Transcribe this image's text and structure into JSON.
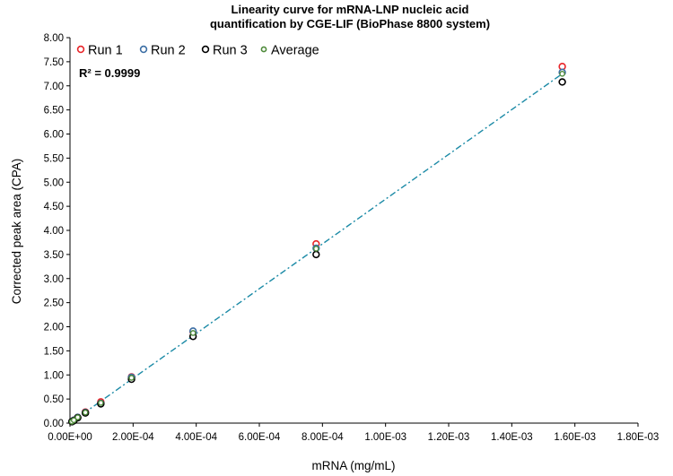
{
  "chart_data": {
    "type": "scatter",
    "title_lines": [
      "Linearity curve for mRNA-LNP nucleic acid",
      "quantification by CGE-LIF (BioPhase 8800 system)"
    ],
    "xlabel": "mRNA (mg/mL)",
    "ylabel": "Corrected peak area (CPA)",
    "xlim": [
      0,
      0.0018
    ],
    "ylim": [
      0,
      8
    ],
    "x_ticks": [
      0,
      0.0002,
      0.0004,
      0.0006,
      0.0008,
      0.001,
      0.0012,
      0.0014,
      0.0016,
      0.0018
    ],
    "x_tick_labels": [
      "0.00E+00",
      "2.00E-04",
      "4.00E-04",
      "6.00E-04",
      "8.00E-04",
      "1.00E-03",
      "1.20E-03",
      "1.40E-03",
      "1.60E-03",
      "1.80E-03"
    ],
    "y_ticks": [
      0,
      0.5,
      1,
      1.5,
      2,
      2.5,
      3,
      3.5,
      4,
      4.5,
      5,
      5.5,
      6,
      6.5,
      7,
      7.5,
      8
    ],
    "y_tick_labels": [
      "0.00",
      "0.50",
      "1.00",
      "1.50",
      "2.00",
      "2.50",
      "3.00",
      "3.50",
      "4.00",
      "4.50",
      "5.00",
      "5.50",
      "6.00",
      "6.50",
      "7.00",
      "7.50",
      "8.00"
    ],
    "grid": false,
    "legend_position": "top-left",
    "annotation": "R² = 0.9999",
    "x": [
      6.1e-06,
      1.22e-05,
      2.44e-05,
      4.88e-05,
      9.77e-05,
      0.000195,
      0.00039,
      0.00078,
      0.00156
    ],
    "series": [
      {
        "name": "Run 1",
        "color": "#e8262a",
        "values": [
          0.03,
          0.06,
          0.12,
          0.23,
          0.44,
          0.96,
          1.9,
          3.72,
          7.4
        ]
      },
      {
        "name": "Run 2",
        "color": "#3d6fa5",
        "values": [
          0.03,
          0.06,
          0.12,
          0.22,
          0.41,
          0.95,
          1.91,
          3.63,
          7.28
        ]
      },
      {
        "name": "Run 3",
        "color": "#000000",
        "values": [
          0.03,
          0.05,
          0.11,
          0.21,
          0.4,
          0.91,
          1.8,
          3.5,
          7.08
        ]
      },
      {
        "name": "Average",
        "color": "#4e8a3a",
        "values": [
          0.03,
          0.06,
          0.12,
          0.22,
          0.42,
          0.94,
          1.87,
          3.62,
          7.25
        ]
      }
    ],
    "trendline": {
      "color": "#1b8aa6",
      "x": [
        6.1e-06,
        0.00156
      ],
      "y": [
        0.03,
        7.25
      ]
    }
  }
}
